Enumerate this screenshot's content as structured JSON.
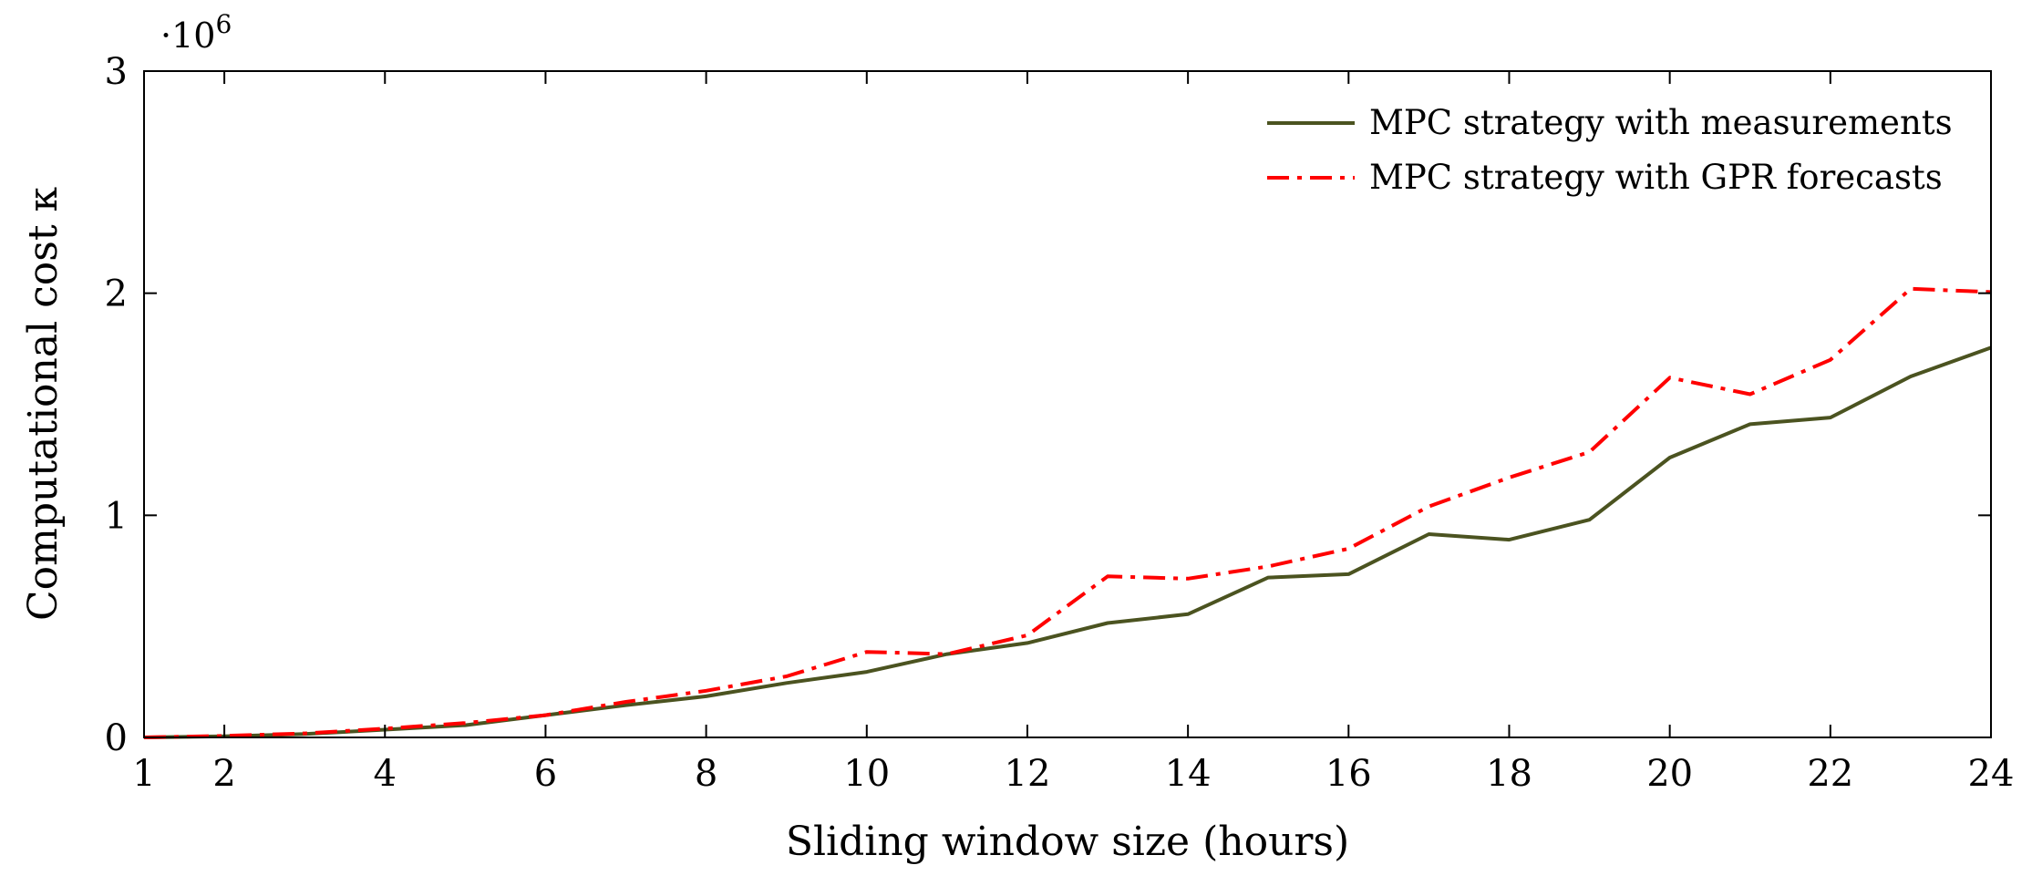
{
  "chart_data": {
    "type": "line",
    "title": "",
    "xlabel": "Sliding window size (hours)",
    "ylabel": "Computational cost κ",
    "y_scale_label": "·10",
    "y_scale_exponent": "6",
    "xlim": [
      1,
      24
    ],
    "ylim": [
      0,
      3
    ],
    "x_ticks": [
      1,
      2,
      4,
      6,
      8,
      10,
      12,
      14,
      16,
      18,
      20,
      22,
      24
    ],
    "x_tick_labels": [
      "1",
      "2",
      "4",
      "6",
      "8",
      "10",
      "12",
      "14",
      "16",
      "18",
      "20",
      "22",
      "24"
    ],
    "y_ticks": [
      0,
      1,
      2,
      3
    ],
    "y_tick_labels": [
      "0",
      "1",
      "2",
      "3"
    ],
    "grid": false,
    "legend_position": "top-right",
    "x": [
      1,
      2,
      3,
      4,
      5,
      6,
      7,
      8,
      9,
      10,
      11,
      12,
      13,
      14,
      15,
      16,
      17,
      18,
      19,
      20,
      21,
      22,
      23,
      24
    ],
    "series": [
      {
        "name": "MPC strategy with measurements",
        "color": "#4b5320",
        "style": "solid",
        "values": [
          0.0,
          0.005,
          0.015,
          0.035,
          0.055,
          0.1,
          0.145,
          0.185,
          0.245,
          0.295,
          0.375,
          0.425,
          0.515,
          0.555,
          0.72,
          0.735,
          0.915,
          0.89,
          0.98,
          1.26,
          1.41,
          1.44,
          1.625,
          1.755
        ]
      },
      {
        "name": "MPC strategy with GPR forecasts",
        "color": "#ff0000",
        "style": "dashdot",
        "values": [
          0.0,
          0.007,
          0.018,
          0.04,
          0.065,
          0.1,
          0.16,
          0.21,
          0.275,
          0.385,
          0.375,
          0.46,
          0.725,
          0.715,
          0.77,
          0.85,
          1.04,
          1.17,
          1.285,
          1.62,
          1.545,
          1.7,
          2.02,
          2.005
        ]
      }
    ]
  }
}
